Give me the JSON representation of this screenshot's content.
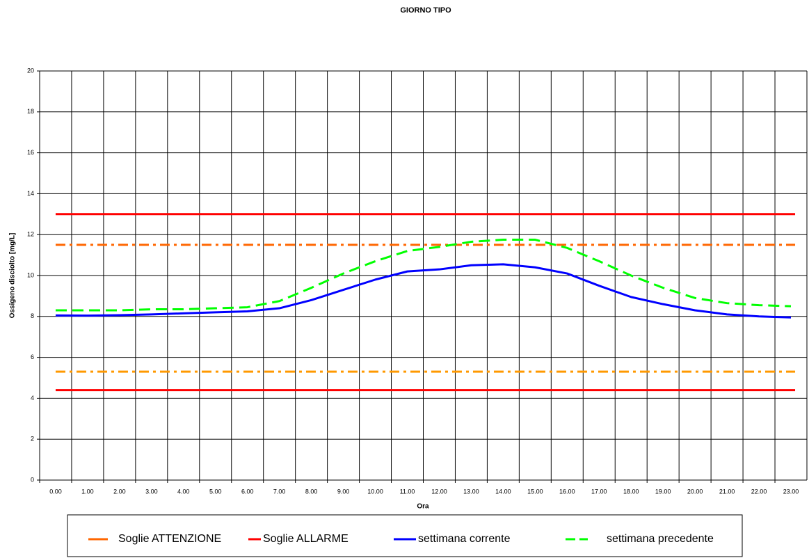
{
  "chart_data": {
    "type": "line",
    "title": "GIORNO TIPO",
    "x_label": "Ora",
    "y_label": "Ossigeno disciolto [mg/L]",
    "categories": [
      "0.00",
      "1.00",
      "2.00",
      "3.00",
      "4.00",
      "5.00",
      "6.00",
      "7.00",
      "8.00",
      "9.00",
      "10.00",
      "11.00",
      "12.00",
      "13.00",
      "14.00",
      "15.00",
      "16.00",
      "17.00",
      "18.00",
      "19.00",
      "20.00",
      "21.00",
      "22.00",
      "23.00"
    ],
    "ylim": [
      0,
      20
    ],
    "yticks": [
      0,
      2,
      4,
      6,
      8,
      10,
      12,
      14,
      16,
      18,
      20
    ],
    "grid": true,
    "series": [
      {
        "name": "Soglie ATTENZIONE",
        "style": "dashdot",
        "levels": [
          11.5,
          5.3
        ],
        "colors": [
          "#ff6600",
          "#ff9900"
        ],
        "color": "#ff6600"
      },
      {
        "name": "Soglie ALLARME",
        "style": "solid",
        "levels": [
          13,
          4.4
        ],
        "colors": [
          "#ff0000",
          "#ff0000"
        ],
        "color": "#ff0000"
      },
      {
        "name": "settimana corrente",
        "style": "solid",
        "color": "#0000ff",
        "values": [
          8.05,
          8.04,
          8.06,
          8.1,
          8.15,
          8.2,
          8.25,
          8.4,
          8.8,
          9.3,
          9.8,
          10.2,
          10.3,
          10.5,
          10.55,
          10.4,
          10.1,
          9.5,
          8.95,
          8.6,
          8.3,
          8.1,
          8.0,
          7.95
        ]
      },
      {
        "name": "settimana precedente",
        "style": "dashed",
        "color": "#00ff00",
        "values": [
          8.3,
          8.3,
          8.3,
          8.35,
          8.35,
          8.4,
          8.45,
          8.75,
          9.4,
          10.1,
          10.7,
          11.2,
          11.4,
          11.65,
          11.75,
          11.75,
          11.35,
          10.7,
          10.0,
          9.4,
          8.9,
          8.65,
          8.55,
          8.5
        ]
      }
    ]
  }
}
